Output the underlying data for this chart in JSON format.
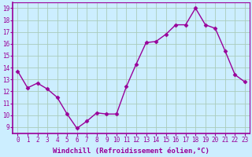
{
  "x": [
    0,
    1,
    2,
    3,
    4,
    5,
    6,
    7,
    8,
    9,
    10,
    11,
    12,
    13,
    14,
    15,
    16,
    17,
    18,
    19,
    20,
    21,
    22,
    23
  ],
  "y": [
    13.7,
    12.3,
    12.7,
    12.2,
    11.5,
    10.1,
    8.9,
    9.5,
    10.2,
    10.1,
    10.1,
    12.4,
    14.3,
    16.1,
    16.2,
    16.8,
    17.6,
    17.6,
    19.0,
    17.6,
    17.3,
    15.4,
    13.4,
    12.8
  ],
  "line_color": "#990099",
  "marker": "D",
  "markersize": 2.5,
  "linewidth": 1.0,
  "bg_color": "#cceeff",
  "grid_color": "#aaccbb",
  "xlabel": "Windchill (Refroidissement éolien,°C)",
  "xlabel_fontsize": 6.5,
  "ylabel_ticks": [
    9,
    10,
    11,
    12,
    13,
    14,
    15,
    16,
    17,
    18,
    19
  ],
  "xlim": [
    -0.5,
    23.5
  ],
  "ylim": [
    8.5,
    19.5
  ],
  "xtick_labels": [
    "0",
    "1",
    "2",
    "3",
    "4",
    "5",
    "6",
    "7",
    "8",
    "9",
    "10",
    "11",
    "12",
    "13",
    "14",
    "15",
    "16",
    "17",
    "18",
    "19",
    "20",
    "21",
    "22",
    "23"
  ],
  "tick_fontsize": 5.5,
  "tick_color": "#990099",
  "label_color": "#990099",
  "spine_color": "#990099"
}
